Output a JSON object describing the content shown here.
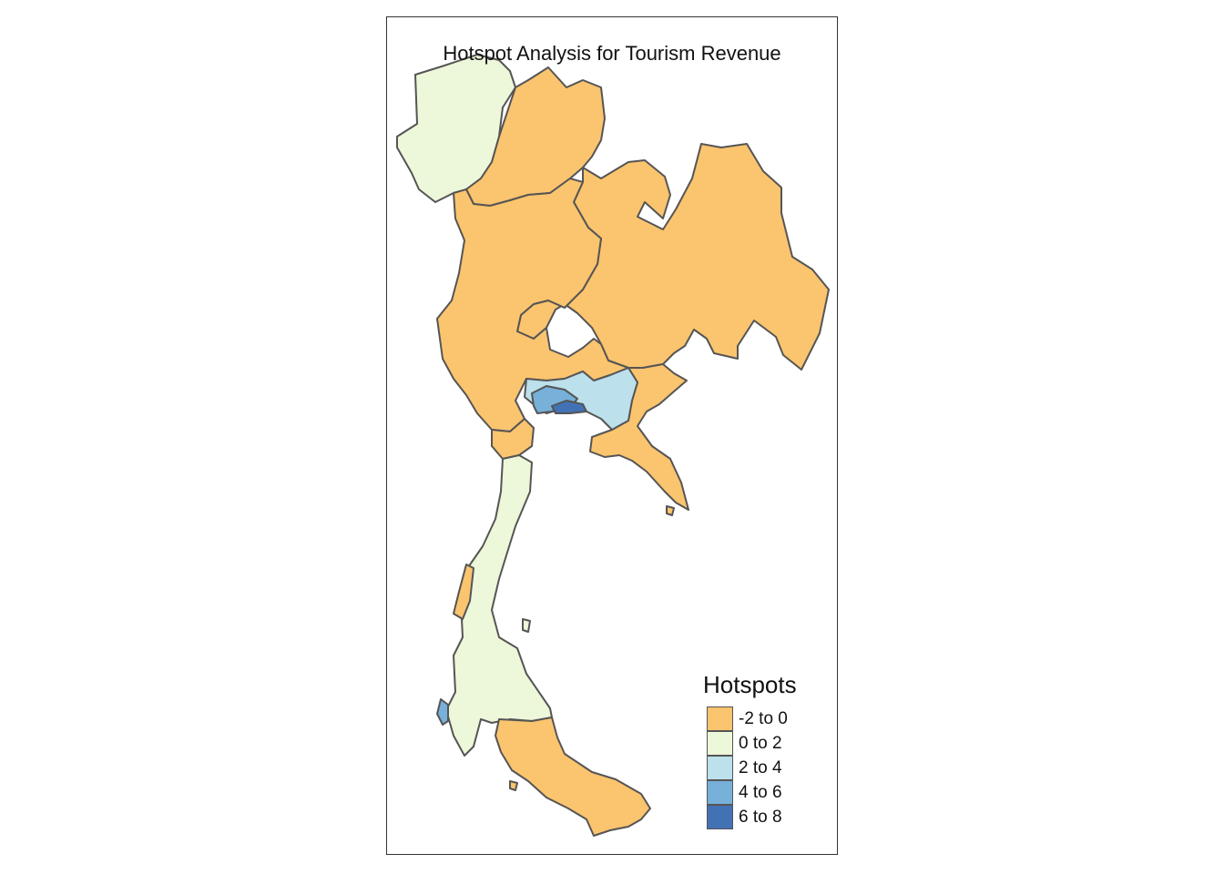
{
  "title": "Hotspot Analysis for Tourism Revenue",
  "legend": {
    "title": "Hotspots",
    "items": [
      {
        "label": "-2 to 0",
        "color": "#FBC46E"
      },
      {
        "label": "0 to 2",
        "color": "#EDF7D9"
      },
      {
        "label": "2 to 4",
        "color": "#BCE0EC"
      },
      {
        "label": "4 to 6",
        "color": "#77B0D8"
      },
      {
        "label": "6 to 8",
        "color": "#4272B4"
      }
    ]
  },
  "colors": {
    "border": "#555555",
    "frame": "#333333"
  }
}
